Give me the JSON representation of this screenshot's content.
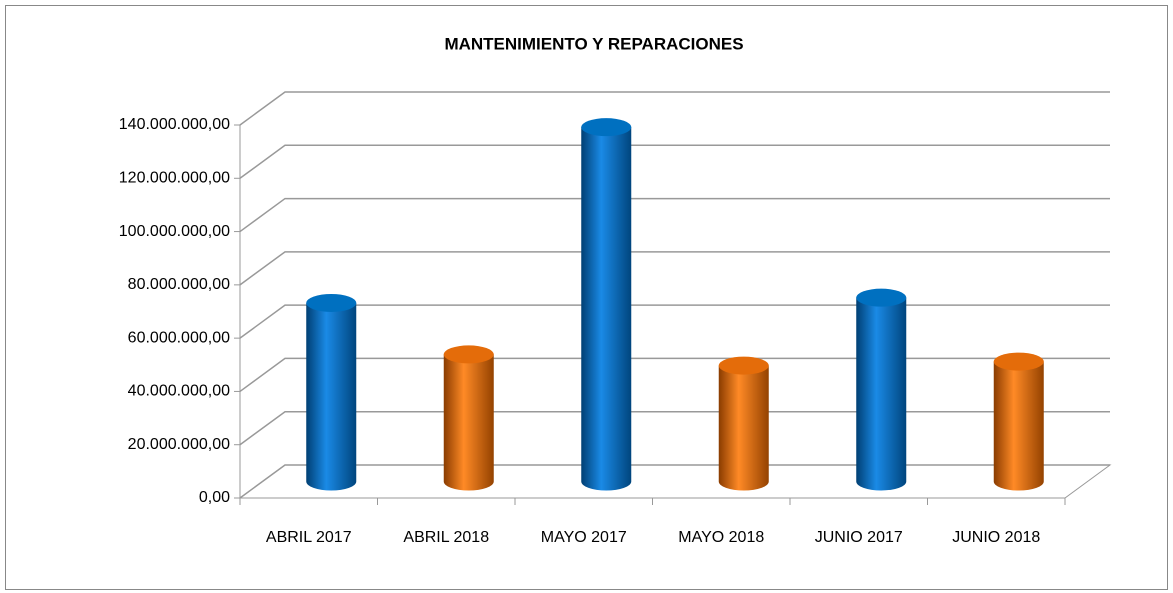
{
  "chart_data": {
    "type": "bar3d",
    "title": "MANTENIMIENTO Y REPARACIONES",
    "categories": [
      "ABRIL 2017",
      "ABRIL 2018",
      "MAYO 2017",
      "MAYO 2018",
      "JUNIO 2017",
      "JUNIO 2018"
    ],
    "values": [
      67000000,
      47700000,
      133000000,
      43500000,
      69000000,
      45000000
    ],
    "colors": [
      "#0070c0",
      "#e46c0a",
      "#0070c0",
      "#e46c0a",
      "#0070c0",
      "#e46c0a"
    ],
    "ylim": [
      0,
      140000000
    ],
    "yticks": [
      {
        "value": 0,
        "label": "0,00"
      },
      {
        "value": 20000000,
        "label": "20.000.000,00"
      },
      {
        "value": 40000000,
        "label": "40.000.000,00"
      },
      {
        "value": 60000000,
        "label": "60.000.000,00"
      },
      {
        "value": 80000000,
        "label": "80.000.000,00"
      },
      {
        "value": 100000000,
        "label": "100.000.000,00"
      },
      {
        "value": 120000000,
        "label": "120.000.000,00"
      },
      {
        "value": 140000000,
        "label": "140.000.000,00"
      }
    ],
    "grid": true
  }
}
